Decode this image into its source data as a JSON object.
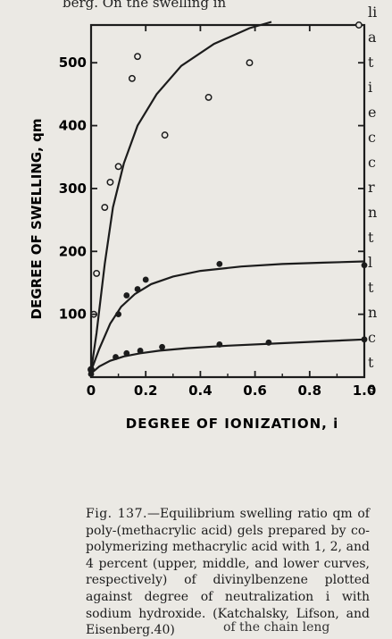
{
  "page_text": {
    "top_fragment": "berg. On the swelling in",
    "right_column_fragments": [
      "li",
      "a",
      "t",
      "i",
      "e",
      "c",
      "c",
      "r",
      "n",
      "t",
      "l",
      "t",
      "n",
      "c",
      "t",
      "s"
    ],
    "bottom_fragment": "of the chain leng"
  },
  "figure": {
    "caption_label": "Fig. 137.",
    "caption_text": "—Equilibrium swelling ratio qm of poly-(methacrylic acid) gels prepared by co-polymerizing methacrylic acid with 1, 2, and 4 percent (upper, middle, and lower curves, respectively) of divinylbenzene plotted against degree of neutralization i with sodium hydroxide. (Katchalsky, Lifson, and Eisenberg.40)"
  },
  "chart_data": {
    "type": "scatter",
    "title": "",
    "xlabel": "DEGREE OF IONIZATION, i",
    "ylabel": "DEGREE OF SWELLING, qm",
    "xlim": [
      0,
      1.0
    ],
    "ylim": [
      0,
      560
    ],
    "x_ticks": [
      "0",
      "0.2",
      "0.4",
      "0.6",
      "0.8",
      "1.0"
    ],
    "y_ticks": [
      "100",
      "200",
      "300",
      "400",
      "500"
    ],
    "grid": false,
    "series": [
      {
        "marker": "open",
        "points": [
          [
            0.0,
            12
          ],
          [
            0.01,
            100
          ],
          [
            0.02,
            165
          ],
          [
            0.05,
            270
          ],
          [
            0.07,
            310
          ],
          [
            0.1,
            335
          ],
          [
            0.15,
            475
          ],
          [
            0.17,
            510
          ],
          [
            0.27,
            385
          ],
          [
            0.43,
            445
          ],
          [
            0.58,
            500
          ],
          [
            0.98,
            560
          ]
        ],
        "curve": [
          [
            0.0,
            10
          ],
          [
            0.02,
            70
          ],
          [
            0.05,
            180
          ],
          [
            0.08,
            270
          ],
          [
            0.12,
            340
          ],
          [
            0.17,
            400
          ],
          [
            0.24,
            450
          ],
          [
            0.33,
            495
          ],
          [
            0.45,
            530
          ],
          [
            0.58,
            555
          ],
          [
            0.66,
            565
          ]
        ]
      },
      {
        "marker": "filled",
        "points": [
          [
            0.0,
            12
          ],
          [
            0.1,
            100
          ],
          [
            0.13,
            130
          ],
          [
            0.17,
            140
          ],
          [
            0.2,
            155
          ],
          [
            0.47,
            180
          ],
          [
            1.0,
            178
          ]
        ],
        "curve": [
          [
            0.0,
            10
          ],
          [
            0.03,
            45
          ],
          [
            0.07,
            85
          ],
          [
            0.11,
            112
          ],
          [
            0.16,
            132
          ],
          [
            0.22,
            148
          ],
          [
            0.3,
            160
          ],
          [
            0.4,
            169
          ],
          [
            0.55,
            176
          ],
          [
            0.7,
            180
          ],
          [
            0.85,
            182
          ],
          [
            1.0,
            184
          ]
        ]
      },
      {
        "marker": "filled",
        "points": [
          [
            0.0,
            5
          ],
          [
            0.09,
            32
          ],
          [
            0.13,
            38
          ],
          [
            0.18,
            42
          ],
          [
            0.26,
            48
          ],
          [
            0.47,
            52
          ],
          [
            0.65,
            55
          ],
          [
            1.0,
            60
          ]
        ],
        "curve": [
          [
            0.0,
            6
          ],
          [
            0.03,
            17
          ],
          [
            0.07,
            26
          ],
          [
            0.12,
            33
          ],
          [
            0.18,
            38
          ],
          [
            0.25,
            42
          ],
          [
            0.35,
            46
          ],
          [
            0.5,
            50
          ],
          [
            0.7,
            54
          ],
          [
            0.85,
            57
          ],
          [
            1.0,
            60
          ]
        ]
      }
    ]
  }
}
